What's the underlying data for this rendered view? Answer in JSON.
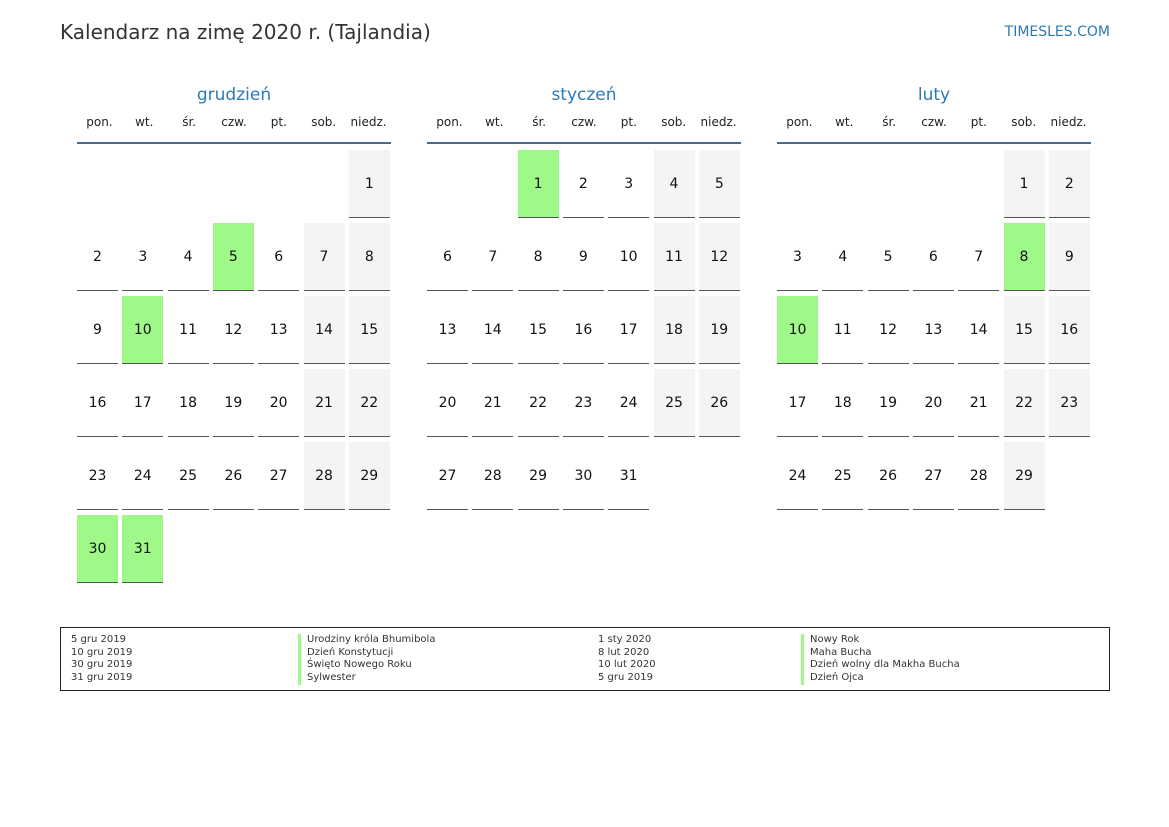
{
  "header": {
    "title": "Kalendarz na zimę 2020 r. (Tajlandia)",
    "brand": "TIMESLES.COM"
  },
  "weekdays": [
    "pon.",
    "wt.",
    "śr.",
    "czw.",
    "pt.",
    "sob.",
    "niedz."
  ],
  "colors": {
    "holiday": "#9ef988",
    "weekend": "#f4f4f4",
    "accent": "#2a7ab9"
  },
  "months": [
    {
      "name": "grudzień",
      "weeks": [
        [
          null,
          null,
          null,
          null,
          null,
          null,
          1
        ],
        [
          2,
          3,
          4,
          5,
          6,
          7,
          8
        ],
        [
          9,
          10,
          11,
          12,
          13,
          14,
          15
        ],
        [
          16,
          17,
          18,
          19,
          20,
          21,
          22
        ],
        [
          23,
          24,
          25,
          26,
          27,
          28,
          29
        ],
        [
          30,
          31
        ]
      ],
      "holidays": [
        5,
        10,
        30,
        31
      ]
    },
    {
      "name": "styczeń",
      "weeks": [
        [
          null,
          null,
          1,
          2,
          3,
          4,
          5
        ],
        [
          6,
          7,
          8,
          9,
          10,
          11,
          12
        ],
        [
          13,
          14,
          15,
          16,
          17,
          18,
          19
        ],
        [
          20,
          21,
          22,
          23,
          24,
          25,
          26
        ],
        [
          27,
          28,
          29,
          30,
          31
        ]
      ],
      "holidays": [
        1
      ]
    },
    {
      "name": "luty",
      "weeks": [
        [
          null,
          null,
          null,
          null,
          null,
          1,
          2
        ],
        [
          3,
          4,
          5,
          6,
          7,
          8,
          9
        ],
        [
          10,
          11,
          12,
          13,
          14,
          15,
          16
        ],
        [
          17,
          18,
          19,
          20,
          21,
          22,
          23
        ],
        [
          24,
          25,
          26,
          27,
          28,
          29
        ]
      ],
      "holidays": [
        8,
        10
      ]
    }
  ],
  "legend": {
    "dates1": [
      "5 gru 2019",
      "10 gru 2019",
      "30 gru 2019",
      "31 gru 2019"
    ],
    "names1": [
      "Urodziny króla Bhumibola",
      "Dzień Konstytucji",
      "Święto Nowego Roku",
      "Sylwester"
    ],
    "dates2": [
      "1 sty 2020",
      "8 lut 2020",
      "10 lut 2020",
      "5 gru 2019"
    ],
    "names2": [
      "Nowy Rok",
      "Maha Bucha",
      "Dzień wolny dla Makha Bucha",
      "Dzień Ojca"
    ]
  }
}
